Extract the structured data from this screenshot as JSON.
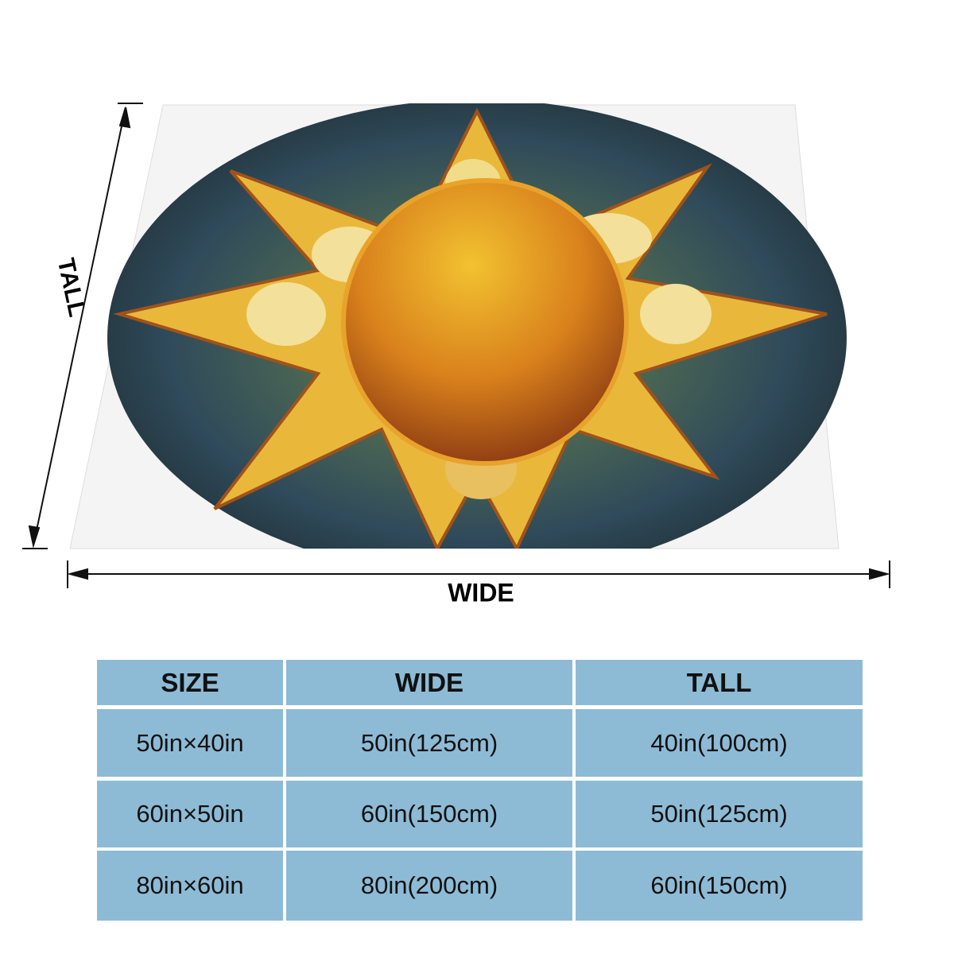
{
  "figure": {
    "tall_label": "TALL",
    "wide_label": "WIDE"
  },
  "table": {
    "header": [
      "SIZE",
      "WIDE",
      "TALL"
    ],
    "rows": [
      [
        "50in×40in",
        "50in(125cm)",
        "40in(100cm)"
      ],
      [
        "60in×50in",
        "60in(150cm)",
        "50in(125cm)"
      ],
      [
        "80in×60in",
        "80in(200cm)",
        "60in(150cm)"
      ]
    ]
  }
}
